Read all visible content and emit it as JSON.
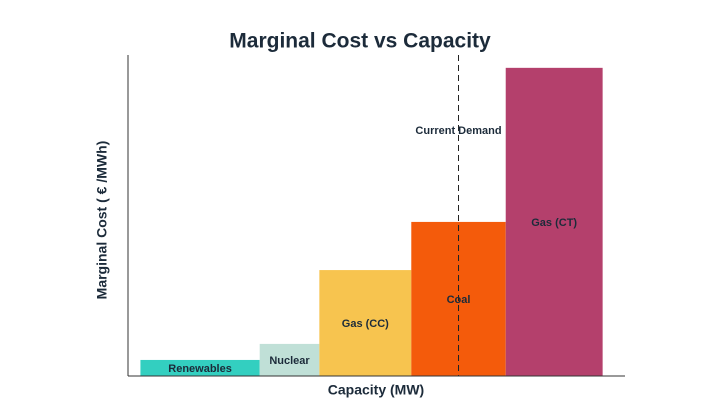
{
  "chart_data": {
    "type": "merit-order",
    "title": "Marginal Cost vs Capacity",
    "x_label": "Capacity (MW)",
    "y_label": "Marginal Cost ( € /MWh)",
    "categories": [
      "Renewables",
      "Nuclear",
      "Gas (CC)",
      "Coal",
      "Gas (CT)"
    ],
    "values": [
      5,
      10,
      33,
      48,
      96
    ],
    "widths": [
      24,
      12,
      18.5,
      19,
      19.5
    ],
    "colors": [
      "#33cfc0",
      "#c0e0d7",
      "#f7c44f",
      "#f45b0b",
      "#b4406c"
    ],
    "xlim": [
      -2.5,
      97.5
    ],
    "ylim": [
      0,
      100
    ],
    "demand": {
      "label": "Current Demand",
      "x": 64
    }
  }
}
